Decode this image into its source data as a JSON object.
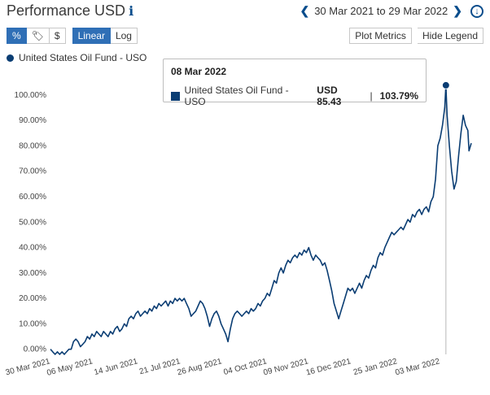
{
  "header": {
    "title": "Performance USD",
    "info_icon": "info-icon",
    "date_range": "30 Mar 2021 to 29 Mar 2022"
  },
  "toolbar": {
    "mode_buttons": [
      "%",
      "🏷",
      "$"
    ],
    "scale_buttons": [
      "Linear",
      "Log"
    ],
    "active_mode": "%",
    "active_scale": "Linear",
    "plot_metrics_label": "Plot Metrics",
    "hide_legend_label": "Hide Legend"
  },
  "legend": {
    "label": "United States Oil Fund - USO"
  },
  "tooltip": {
    "date": "08 Mar 2022",
    "series": "United States Oil Fund - USO",
    "price": "USD 85.43",
    "sep": "|",
    "pct": "103.79%"
  },
  "colors": {
    "series": "#0a3d73",
    "accent": "#2f6fb6"
  },
  "chart_data": {
    "type": "line",
    "title": "Performance USD",
    "series_name": "United States Oil Fund - USO",
    "ylim": [
      -2,
      106
    ],
    "yticks": [
      0,
      10,
      20,
      30,
      40,
      50,
      60,
      70,
      80,
      90,
      100
    ],
    "ytick_labels": [
      "0.00%",
      "10.00%",
      "20.00%",
      "30.00%",
      "40.00%",
      "50.00%",
      "60.00%",
      "70.00%",
      "80.00%",
      "90.00%",
      "100.00%"
    ],
    "xlim": [
      0,
      365
    ],
    "xticks": [
      0,
      37,
      76,
      113,
      149,
      188,
      224,
      261,
      301,
      338
    ],
    "xtick_labels": [
      "30 Mar 2021",
      "06 May 2021",
      "14 Jun 2021",
      "21 Jul 2021",
      "26 Aug 2021",
      "04 Oct 2021",
      "09 Nov 2021",
      "16 Dec 2021",
      "25 Jan 2022",
      "03 Mar 2022"
    ],
    "highlight": {
      "x": 343,
      "y": 103.79
    },
    "points": [
      [
        0,
        0
      ],
      [
        2,
        -1
      ],
      [
        4,
        -2
      ],
      [
        6,
        -1
      ],
      [
        8,
        -2
      ],
      [
        10,
        -1
      ],
      [
        12,
        -2
      ],
      [
        14,
        -1
      ],
      [
        16,
        0
      ],
      [
        18,
        0
      ],
      [
        20,
        3
      ],
      [
        22,
        4
      ],
      [
        24,
        3
      ],
      [
        26,
        1
      ],
      [
        28,
        2
      ],
      [
        30,
        3
      ],
      [
        32,
        5
      ],
      [
        34,
        4
      ],
      [
        36,
        6
      ],
      [
        38,
        5
      ],
      [
        40,
        7
      ],
      [
        42,
        6
      ],
      [
        44,
        5
      ],
      [
        46,
        7
      ],
      [
        48,
        6
      ],
      [
        50,
        5
      ],
      [
        52,
        7
      ],
      [
        54,
        6
      ],
      [
        56,
        8
      ],
      [
        58,
        9
      ],
      [
        60,
        7
      ],
      [
        62,
        8
      ],
      [
        64,
        10
      ],
      [
        66,
        9
      ],
      [
        68,
        12
      ],
      [
        70,
        13
      ],
      [
        72,
        12
      ],
      [
        74,
        14
      ],
      [
        76,
        15
      ],
      [
        78,
        13
      ],
      [
        80,
        14
      ],
      [
        82,
        15
      ],
      [
        84,
        14
      ],
      [
        86,
        16
      ],
      [
        88,
        15
      ],
      [
        90,
        17
      ],
      [
        92,
        16
      ],
      [
        94,
        18
      ],
      [
        96,
        17
      ],
      [
        98,
        18
      ],
      [
        100,
        19
      ],
      [
        102,
        17
      ],
      [
        104,
        19
      ],
      [
        106,
        18
      ],
      [
        108,
        20
      ],
      [
        110,
        19
      ],
      [
        112,
        20
      ],
      [
        114,
        19
      ],
      [
        116,
        20
      ],
      [
        118,
        18
      ],
      [
        120,
        16
      ],
      [
        122,
        13
      ],
      [
        124,
        14
      ],
      [
        126,
        15
      ],
      [
        128,
        17
      ],
      [
        130,
        19
      ],
      [
        132,
        18
      ],
      [
        134,
        16
      ],
      [
        136,
        13
      ],
      [
        138,
        9
      ],
      [
        140,
        12
      ],
      [
        142,
        14
      ],
      [
        144,
        15
      ],
      [
        146,
        13
      ],
      [
        148,
        10
      ],
      [
        150,
        8
      ],
      [
        152,
        6
      ],
      [
        154,
        3
      ],
      [
        156,
        8
      ],
      [
        158,
        12
      ],
      [
        160,
        14
      ],
      [
        162,
        15
      ],
      [
        164,
        14
      ],
      [
        166,
        13
      ],
      [
        168,
        14
      ],
      [
        170,
        15
      ],
      [
        172,
        14
      ],
      [
        174,
        16
      ],
      [
        176,
        15
      ],
      [
        178,
        16
      ],
      [
        180,
        18
      ],
      [
        182,
        17
      ],
      [
        184,
        19
      ],
      [
        186,
        20
      ],
      [
        188,
        22
      ],
      [
        190,
        21
      ],
      [
        192,
        24
      ],
      [
        194,
        27
      ],
      [
        196,
        26
      ],
      [
        198,
        30
      ],
      [
        200,
        32
      ],
      [
        202,
        30
      ],
      [
        204,
        33
      ],
      [
        206,
        35
      ],
      [
        208,
        34
      ],
      [
        210,
        36
      ],
      [
        212,
        37
      ],
      [
        214,
        36
      ],
      [
        216,
        38
      ],
      [
        218,
        37
      ],
      [
        220,
        39
      ],
      [
        222,
        38
      ],
      [
        224,
        40
      ],
      [
        226,
        37
      ],
      [
        228,
        35
      ],
      [
        230,
        37
      ],
      [
        232,
        36
      ],
      [
        234,
        35
      ],
      [
        236,
        33
      ],
      [
        238,
        34
      ],
      [
        240,
        31
      ],
      [
        242,
        27
      ],
      [
        244,
        23
      ],
      [
        246,
        18
      ],
      [
        248,
        15
      ],
      [
        250,
        12
      ],
      [
        252,
        15
      ],
      [
        254,
        18
      ],
      [
        256,
        21
      ],
      [
        258,
        24
      ],
      [
        260,
        23
      ],
      [
        262,
        24
      ],
      [
        264,
        22
      ],
      [
        266,
        24
      ],
      [
        268,
        26
      ],
      [
        270,
        24
      ],
      [
        272,
        27
      ],
      [
        274,
        29
      ],
      [
        276,
        28
      ],
      [
        278,
        31
      ],
      [
        280,
        33
      ],
      [
        282,
        32
      ],
      [
        284,
        36
      ],
      [
        286,
        38
      ],
      [
        288,
        37
      ],
      [
        290,
        40
      ],
      [
        292,
        42
      ],
      [
        294,
        44
      ],
      [
        296,
        46
      ],
      [
        298,
        45
      ],
      [
        300,
        46
      ],
      [
        302,
        47
      ],
      [
        304,
        48
      ],
      [
        306,
        47
      ],
      [
        308,
        49
      ],
      [
        310,
        51
      ],
      [
        312,
        50
      ],
      [
        314,
        53
      ],
      [
        316,
        52
      ],
      [
        318,
        54
      ],
      [
        320,
        55
      ],
      [
        322,
        53
      ],
      [
        324,
        55
      ],
      [
        326,
        56
      ],
      [
        328,
        54
      ],
      [
        330,
        58
      ],
      [
        332,
        60
      ],
      [
        334,
        67
      ],
      [
        336,
        80
      ],
      [
        338,
        83
      ],
      [
        340,
        88
      ],
      [
        342,
        95
      ],
      [
        343,
        103.79
      ],
      [
        344,
        92
      ],
      [
        346,
        80
      ],
      [
        348,
        70
      ],
      [
        350,
        63
      ],
      [
        352,
        66
      ],
      [
        354,
        76
      ],
      [
        356,
        85
      ],
      [
        358,
        92
      ],
      [
        360,
        88
      ],
      [
        362,
        86
      ],
      [
        363,
        78
      ],
      [
        365,
        81
      ]
    ]
  }
}
